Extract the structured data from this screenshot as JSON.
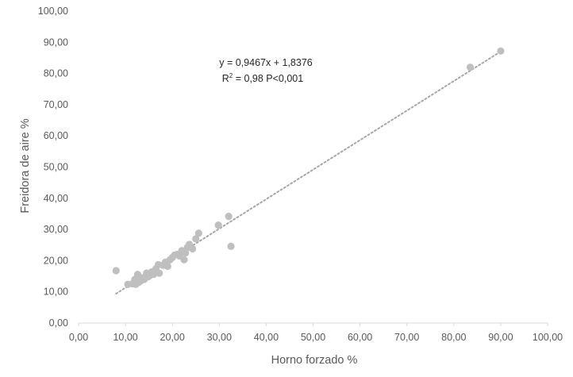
{
  "chart_data": {
    "type": "scatter",
    "xlabel": "Horno forzado %",
    "ylabel": "Freidora de aire %",
    "xlim": [
      0,
      100
    ],
    "ylim": [
      0,
      100
    ],
    "xticks": [
      "0,00",
      "10,00",
      "20,00",
      "30,00",
      "40,00",
      "50,00",
      "60,00",
      "70,00",
      "80,00",
      "90,00",
      "100,00"
    ],
    "yticks": [
      "0,00",
      "10,00",
      "20,00",
      "30,00",
      "40,00",
      "50,00",
      "60,00",
      "70,00",
      "80,00",
      "90,00",
      "100,00"
    ],
    "grid": false,
    "legend": "none",
    "colors": {
      "points": "#BFBFBF",
      "trendline": "#A6A6A6",
      "axis": "#D9D9D9"
    },
    "trendline": {
      "type": "linear",
      "slope": 0.9467,
      "intercept": 1.8376,
      "x_range": [
        8,
        90
      ],
      "style": "dotted"
    },
    "annotation": {
      "equation": "y = 0,9467x + 1,8376",
      "r2_prefix": "R",
      "r2_sup": "2",
      "r2_rest": " = 0,98   P<0,001"
    },
    "series": [
      {
        "points": [
          [
            8.0,
            16.8
          ],
          [
            10.5,
            12.4
          ],
          [
            11.5,
            12.6
          ],
          [
            12.0,
            14.0
          ],
          [
            12.2,
            12.4
          ],
          [
            12.6,
            15.6
          ],
          [
            12.8,
            13.0
          ],
          [
            13.2,
            13.5
          ],
          [
            13.6,
            14.5
          ],
          [
            14.0,
            14.0
          ],
          [
            14.5,
            16.0
          ],
          [
            14.8,
            14.8
          ],
          [
            15.2,
            15.2
          ],
          [
            15.6,
            16.4
          ],
          [
            16.0,
            15.6
          ],
          [
            16.5,
            17.4
          ],
          [
            17.0,
            18.7
          ],
          [
            17.2,
            16.0
          ],
          [
            18.0,
            18.5
          ],
          [
            18.5,
            19.5
          ],
          [
            19.0,
            18.2
          ],
          [
            19.5,
            20.3
          ],
          [
            20.0,
            21.0
          ],
          [
            20.5,
            21.8
          ],
          [
            21.0,
            22.0
          ],
          [
            21.5,
            21.5
          ],
          [
            22.0,
            23.2
          ],
          [
            22.5,
            20.3
          ],
          [
            22.8,
            22.5
          ],
          [
            23.2,
            24.2
          ],
          [
            23.6,
            25.2
          ],
          [
            24.3,
            23.8
          ],
          [
            25.0,
            27.0
          ],
          [
            25.6,
            28.8
          ],
          [
            29.8,
            31.4
          ],
          [
            32.0,
            34.2
          ],
          [
            32.5,
            24.6
          ],
          [
            83.5,
            82.0
          ],
          [
            90.0,
            87.2
          ]
        ]
      }
    ]
  }
}
